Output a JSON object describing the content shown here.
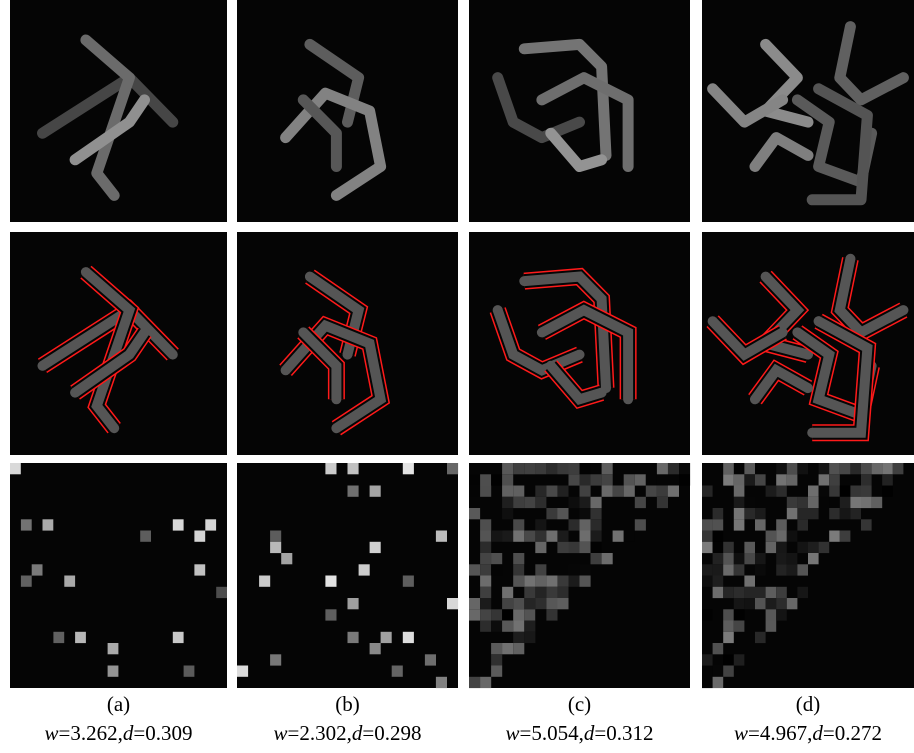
{
  "panels": [
    {
      "label": "(a)",
      "caption": [
        {
          "text": "w",
          "italic": true
        },
        {
          "text": "=3.262,",
          "italic": false
        },
        {
          "text": "d",
          "italic": true
        },
        {
          "text": "=0.309",
          "italic": false
        }
      ]
    },
    {
      "label": "(b)",
      "caption": [
        {
          "text": "w",
          "italic": true
        },
        {
          "text": "=2.302,",
          "italic": false
        },
        {
          "text": "d",
          "italic": true
        },
        {
          "text": "=0.298",
          "italic": false
        }
      ]
    },
    {
      "label": "(c)",
      "caption": [
        {
          "text": "w",
          "italic": true
        },
        {
          "text": "=5.054,",
          "italic": false
        },
        {
          "text": "d",
          "italic": true
        },
        {
          "text": "=0.312",
          "italic": false
        }
      ]
    },
    {
      "label": "(d)",
      "caption": [
        {
          "text": "w",
          "italic": true
        },
        {
          "text": "=4.967,",
          "italic": false
        },
        {
          "text": "d",
          "italic": true
        },
        {
          "text": "=0.272",
          "italic": false
        }
      ]
    }
  ]
}
